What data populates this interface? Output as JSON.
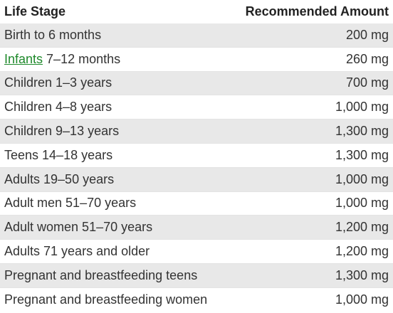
{
  "table": {
    "headers": {
      "stage": "Life Stage",
      "amount": "Recommended Amount"
    },
    "rows": [
      {
        "stage": "Birth to 6 months",
        "amount": "200 mg"
      },
      {
        "stage_link": "Infants",
        "stage": " 7–12 months",
        "amount": "260 mg"
      },
      {
        "stage": "Children 1–3 years",
        "amount": "700 mg"
      },
      {
        "stage": "Children 4–8 years",
        "amount": "1,000 mg"
      },
      {
        "stage": "Children 9–13 years",
        "amount": "1,300 mg"
      },
      {
        "stage": "Teens 14–18 years",
        "amount": "1,300 mg"
      },
      {
        "stage": "Adults 19–50 years",
        "amount": "1,000 mg"
      },
      {
        "stage": "Adult men 51–70 years",
        "amount": "1,000 mg"
      },
      {
        "stage": "Adult women 51–70 years",
        "amount": "1,200 mg"
      },
      {
        "stage": "Adults 71 years and older",
        "amount": "1,200 mg"
      },
      {
        "stage": "Pregnant and breastfeeding teens",
        "amount": "1,300 mg"
      },
      {
        "stage": "Pregnant and breastfeeding women",
        "amount": "1,000 mg"
      }
    ]
  },
  "colors": {
    "link": "#1f8a2c",
    "row_shade": "#e8e8e8"
  }
}
